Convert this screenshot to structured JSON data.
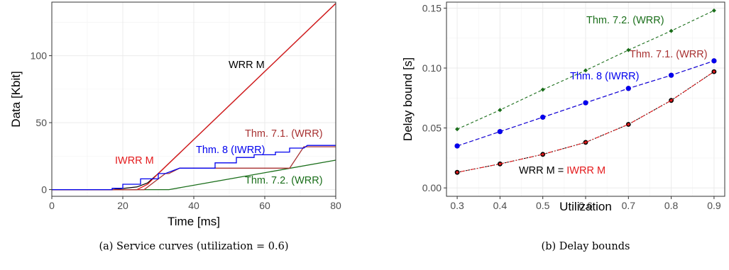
{
  "chart_data": [
    {
      "type": "line",
      "title": "",
      "xlabel": "Time [ms]",
      "ylabel": "Data [Kbit]",
      "xlim": [
        0,
        80
      ],
      "ylim": [
        -5,
        140
      ],
      "xticks": [
        "0",
        "20",
        "40",
        "60",
        "80"
      ],
      "yticks": [
        "0",
        "50",
        "100"
      ],
      "grid": true,
      "caption": "(a) Service curves (utilization = 0.6)",
      "series": [
        {
          "name": "WRR M",
          "color": "#000000",
          "points": [
            [
              0,
              0
            ],
            [
              17,
              0
            ],
            [
              24,
              2
            ],
            [
              27,
              5
            ],
            [
              30,
              12
            ],
            [
              80,
              139
            ]
          ]
        },
        {
          "name": "IWRR M",
          "color": "#e41a1c",
          "points": [
            [
              0,
              0
            ],
            [
              24,
              0
            ],
            [
              27,
              4
            ],
            [
              30,
              12
            ],
            [
              80,
              139
            ]
          ]
        },
        {
          "name": "Thm. 7.1. (WRR)",
          "color": "#a83232",
          "points": [
            [
              0,
              0
            ],
            [
              26,
              0
            ],
            [
              32,
              12
            ],
            [
              33,
              12
            ],
            [
              36,
              16
            ],
            [
              67,
              16
            ],
            [
              71,
              32
            ],
            [
              80,
              32
            ]
          ]
        },
        {
          "name": "Thm. 8 (IWRR)",
          "color": "#0000ee",
          "points": [
            [
              0,
              0
            ],
            [
              17,
              0
            ],
            [
              17,
              1
            ],
            [
              20,
              1
            ],
            [
              20,
              4
            ],
            [
              25,
              4
            ],
            [
              25,
              8
            ],
            [
              30,
              8
            ],
            [
              30,
              12
            ],
            [
              32,
              12
            ],
            [
              36,
              16
            ],
            [
              46,
              16
            ],
            [
              46,
              20
            ],
            [
              52,
              20
            ],
            [
              52,
              24
            ],
            [
              57,
              24
            ],
            [
              57,
              26
            ],
            [
              63,
              26
            ],
            [
              63,
              28
            ],
            [
              67,
              28
            ],
            [
              67,
              31
            ],
            [
              71,
              31
            ],
            [
              72,
              33
            ],
            [
              80,
              33
            ]
          ]
        },
        {
          "name": "Thm. 7.2. (WRR)",
          "color": "#1a6e1a",
          "points": [
            [
              0,
              0
            ],
            [
              33,
              0
            ],
            [
              80,
              22
            ]
          ]
        }
      ]
    },
    {
      "type": "line",
      "title": "",
      "xlabel": "Utilization",
      "ylabel": "Delay bound [s]",
      "xlim": [
        0.3,
        0.9
      ],
      "ylim": [
        0,
        0.15
      ],
      "xticks": [
        "0.3",
        "0.4",
        "0.5",
        "0.6",
        "0.7",
        "0.8",
        "0.9"
      ],
      "yticks": [
        "0.00",
        "0.05",
        "0.10",
        "0.15"
      ],
      "grid": true,
      "caption": "(b) Delay bounds",
      "x": [
        0.3,
        0.4,
        0.5,
        0.6,
        0.7,
        0.8,
        0.9
      ],
      "series": [
        {
          "name": "Thm. 7.2. (WRR)",
          "color": "#1a6e1a",
          "values": [
            0.049,
            0.065,
            0.082,
            0.098,
            0.115,
            0.131,
            0.148
          ]
        },
        {
          "name": "Thm. 7.1. (WRR)",
          "color": "#a83232",
          "values": [
            0.035,
            0.047,
            0.059,
            0.071,
            0.083,
            0.094,
            0.106
          ]
        },
        {
          "name": "Thm. 8 (IWRR)",
          "color": "#0000ee",
          "values": [
            0.035,
            0.047,
            0.059,
            0.071,
            0.083,
            0.094,
            0.106
          ]
        },
        {
          "name": "WRR M",
          "color": "#000000",
          "values": [
            0.013,
            0.02,
            0.028,
            0.038,
            0.053,
            0.073,
            0.097
          ]
        },
        {
          "name": "IWRR M",
          "color": "#e41a1c",
          "values": [
            0.013,
            0.02,
            0.028,
            0.038,
            0.053,
            0.073,
            0.097
          ]
        }
      ],
      "combined_label": {
        "left": "WRR M = ",
        "right": "IWRR M"
      }
    }
  ]
}
